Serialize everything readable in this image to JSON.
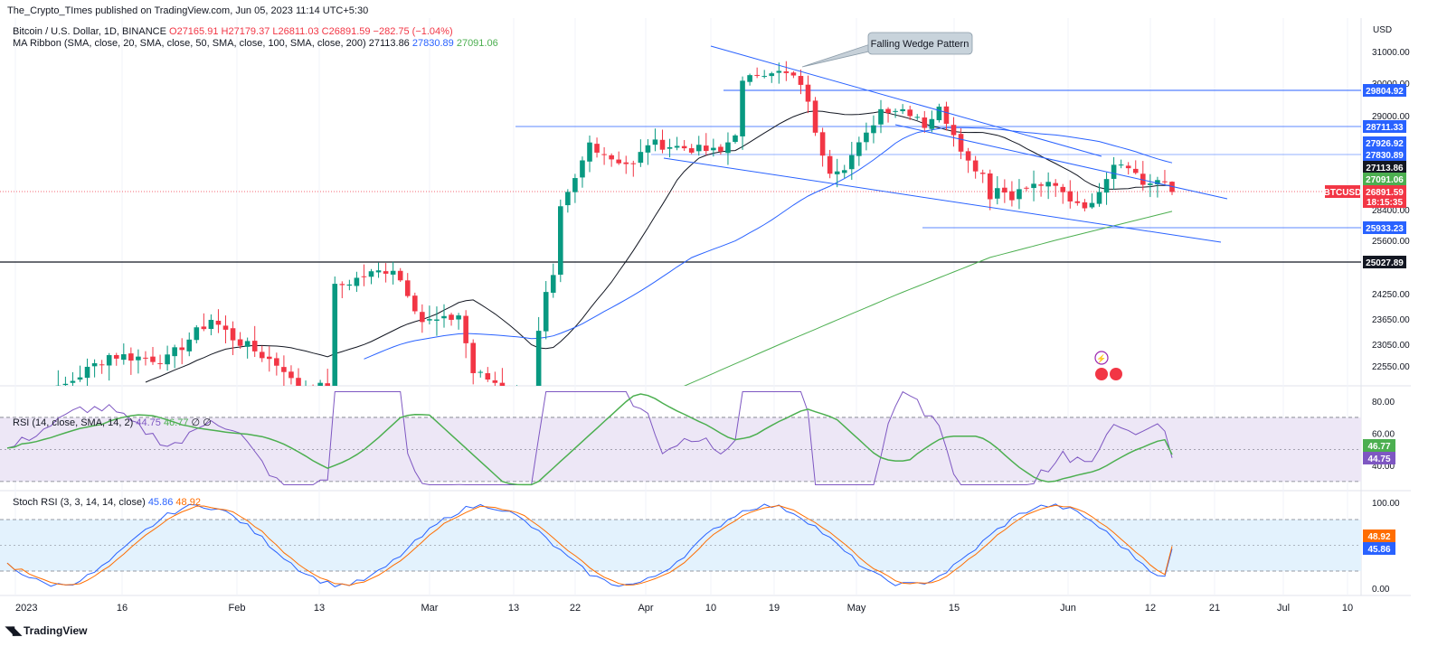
{
  "publisher_line": "The_Crypto_TImes published on TradingView.com, Jun 05, 2023 11:14 UTC+5:30",
  "symbol_line": {
    "name": "Bitcoin / U.S. Dollar, 1D, BINANCE",
    "open": "O27165.91",
    "high": "H27179.37",
    "low": "L26811.03",
    "close": "C26891.59",
    "change": "−282.75 (−1.04%)"
  },
  "ma_line": {
    "label": "MA Ribbon (SMA, close, 20, SMA, close, 50, SMA, close, 100, SMA, close, 200)",
    "v20": "27113.86",
    "v50": "27830.89",
    "v100": "27091.06"
  },
  "rsi_line": {
    "label": "RSI (14, close, SMA, 14, 2)",
    "v1": "44.75",
    "v2": "46.77",
    "v3": "∅",
    "v4": "∅"
  },
  "stoch_line": {
    "label": "Stoch RSI (3, 3, 14, 14, close)",
    "k": "45.86",
    "d": "48.92"
  },
  "currency": "USD",
  "annotation": "Falling Wedge Pattern",
  "footer_logo": "TradingView",
  "colors": {
    "up": "#089981",
    "down": "#f23645",
    "ma20": "#131722",
    "ma50": "#2962ff",
    "ma200": "#4caf50",
    "rsi": "#7e57c2",
    "stoch_k": "#2962ff",
    "stoch_d": "#ff6d00"
  },
  "chart_data": {
    "type": "candlestick",
    "price_axis": {
      "ticks": [
        "31000.00",
        "30000.00",
        "29000.00",
        "28400.00",
        "25600.00",
        "24250.00",
        "23650.00",
        "23050.00",
        "22550.00"
      ]
    },
    "time_axis": {
      "ticks": [
        "2023",
        "16",
        "Feb",
        "13",
        "Mar",
        "13",
        "22",
        "Apr",
        "10",
        "19",
        "May",
        "15",
        "Jun",
        "12",
        "21",
        "Jul",
        "10"
      ]
    },
    "price_labels": [
      {
        "text": "29804.92",
        "style": "line-blue"
      },
      {
        "text": "28711.33",
        "style": "line-blue"
      },
      {
        "text": "27926.92",
        "style": "blue"
      },
      {
        "text": "27830.89",
        "style": "blue"
      },
      {
        "text": "27113.86",
        "style": "black"
      },
      {
        "text": "27091.06",
        "style": "green"
      },
      {
        "text": "BTCUSD",
        "style": "red"
      },
      {
        "text": "26891.59",
        "style": "red"
      },
      {
        "text": "18:15:35",
        "style": "red"
      },
      {
        "text": "25933.23",
        "style": "line-blue"
      },
      {
        "text": "25027.89",
        "style": "black"
      }
    ],
    "horizontal_levels": [
      29804.92,
      28711.33,
      27926.92,
      25933.23,
      25027.89
    ],
    "rsi": {
      "ticks": [
        "80.00",
        "60.00",
        "40.00"
      ],
      "value_labels": [
        "46.77",
        "44.75"
      ]
    },
    "stoch_rsi": {
      "ticks": [
        "100.00",
        "0.00"
      ],
      "value_labels": [
        "48.92",
        "45.86"
      ]
    }
  }
}
